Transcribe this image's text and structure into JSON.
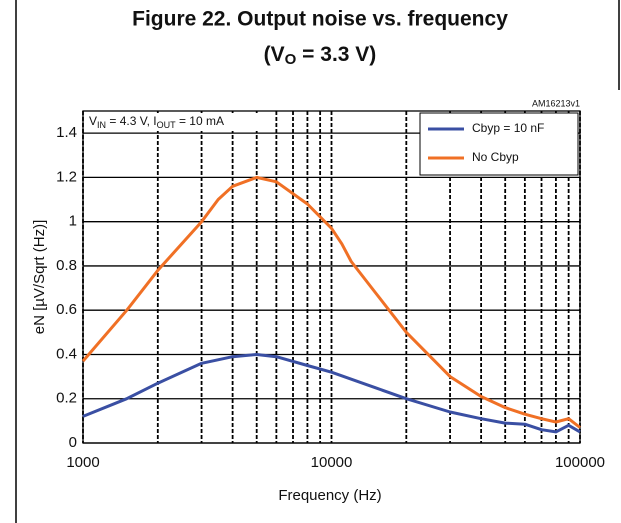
{
  "chart_data": {
    "type": "line",
    "title": "Figure 22. Output noise vs. frequency",
    "subtitle": [
      "(V",
      "O",
      " = 3.3 V)"
    ],
    "figure_id": "AM16213v1",
    "annotation": [
      "V",
      "IN",
      " = 4.3 V,  I",
      "OUT",
      " = 10 mA"
    ],
    "x_label": "Frequency (Hz)",
    "y_label": "eN  [µV/Sqrt (Hz)]",
    "x_log": true,
    "xlim": [
      1000,
      100000
    ],
    "xticks": [
      1000,
      10000,
      100000
    ],
    "x_minor_ticks": [
      2000,
      3000,
      4000,
      5000,
      6000,
      7000,
      8000,
      9000,
      20000,
      30000,
      40000,
      50000,
      60000,
      70000,
      80000,
      90000
    ],
    "ylim": [
      0,
      1.5
    ],
    "yticks": [
      0,
      0.2,
      0.4,
      0.6,
      0.8,
      1,
      1.2,
      1.4
    ],
    "grid": true,
    "legend": "upper right",
    "series": [
      {
        "name": "Cbyp = 10 nF",
        "color": "#3a4fa3",
        "x": [
          1000,
          1500,
          2000,
          3000,
          4000,
          5000,
          6000,
          8000,
          10000,
          15000,
          20000,
          30000,
          40000,
          50000,
          60000,
          70000,
          80000,
          90000,
          100000
        ],
        "values": [
          0.12,
          0.2,
          0.27,
          0.36,
          0.39,
          0.4,
          0.39,
          0.35,
          0.32,
          0.25,
          0.2,
          0.14,
          0.11,
          0.09,
          0.085,
          0.06,
          0.05,
          0.08,
          0.05
        ]
      },
      {
        "name": "No Cbyp",
        "color": "#f07025",
        "x": [
          1000,
          1500,
          2000,
          3000,
          3500,
          4000,
          5000,
          6000,
          8000,
          10000,
          11000,
          12000,
          15000,
          20000,
          30000,
          40000,
          50000,
          60000,
          70000,
          80000,
          90000,
          100000
        ],
        "values": [
          0.37,
          0.6,
          0.78,
          1.0,
          1.1,
          1.16,
          1.2,
          1.18,
          1.08,
          0.97,
          0.9,
          0.82,
          0.68,
          0.5,
          0.3,
          0.21,
          0.16,
          0.13,
          0.11,
          0.095,
          0.11,
          0.07
        ]
      }
    ]
  }
}
